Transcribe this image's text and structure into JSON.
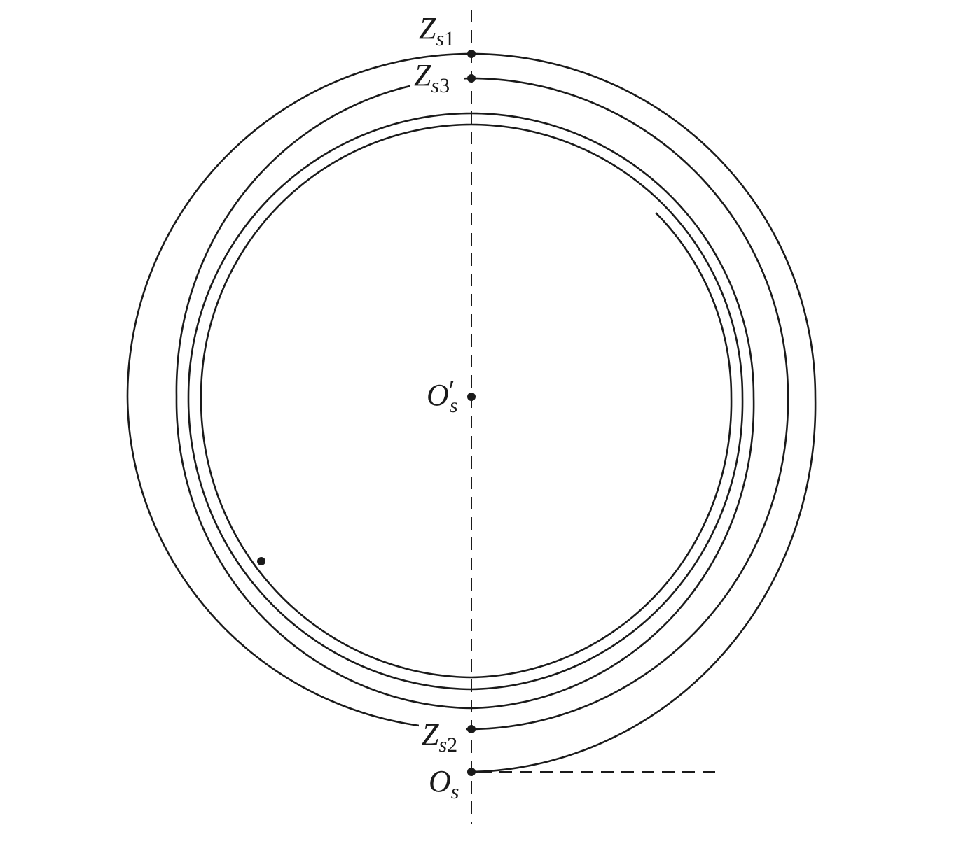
{
  "labels": {
    "zs1": {
      "main": "Z",
      "sub": "s",
      "num": "1"
    },
    "zs3": {
      "main": "Z",
      "sub": "s",
      "num": "3"
    },
    "os_prime": {
      "main": "O",
      "prime": "′",
      "sub": "s"
    },
    "zs2": {
      "main": "Z",
      "sub": "s",
      "num": "2"
    },
    "os": {
      "main": "O",
      "sub": "s"
    }
  }
}
